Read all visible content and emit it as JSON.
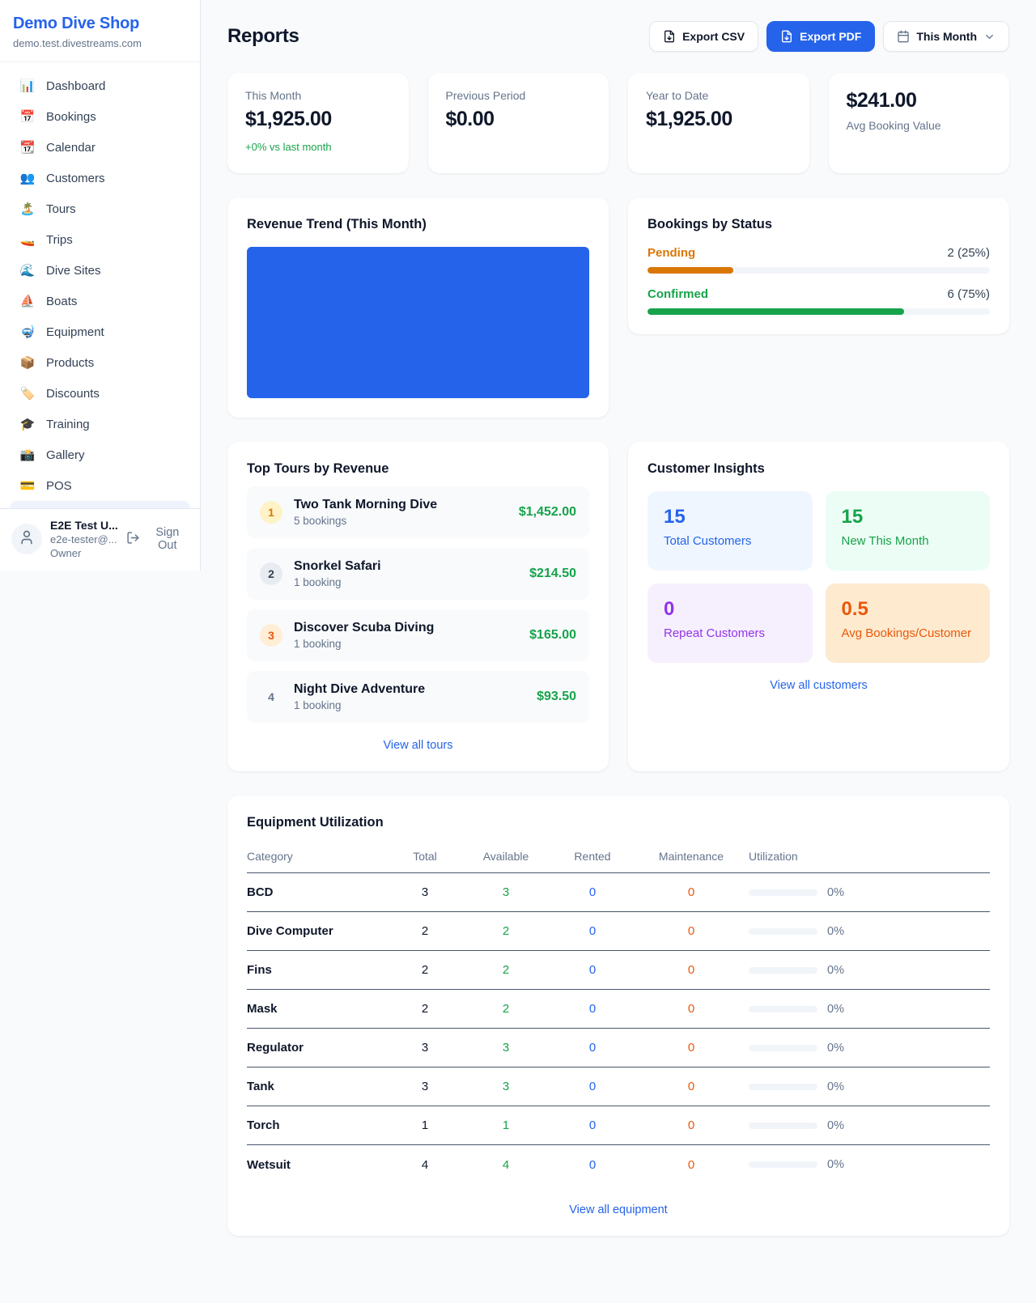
{
  "colors": {
    "accent_blue": "#2563eb",
    "green": "#16a34a",
    "pending_orange": "#d97706",
    "orange": "#ea580c",
    "purple": "#9333ea"
  },
  "sidebar": {
    "shop_name": "Demo Dive Shop",
    "domain": "demo.test.divestreams.com",
    "items": [
      {
        "icon": "📊",
        "label": "Dashboard"
      },
      {
        "icon": "📅",
        "label": "Bookings"
      },
      {
        "icon": "📆",
        "label": "Calendar"
      },
      {
        "icon": "👥",
        "label": "Customers"
      },
      {
        "icon": "🏝️",
        "label": "Tours"
      },
      {
        "icon": "🚤",
        "label": "Trips"
      },
      {
        "icon": "🌊",
        "label": "Dive Sites"
      },
      {
        "icon": "⛵",
        "label": "Boats"
      },
      {
        "icon": "🤿",
        "label": "Equipment"
      },
      {
        "icon": "📦",
        "label": "Products"
      },
      {
        "icon": "🏷️",
        "label": "Discounts"
      },
      {
        "icon": "🎓",
        "label": "Training"
      },
      {
        "icon": "📸",
        "label": "Gallery"
      },
      {
        "icon": "💳",
        "label": "POS"
      }
    ],
    "user": {
      "name": "E2E Test U...",
      "email": "e2e-tester@...",
      "role": "Owner",
      "sign_out_label": "Sign Out",
      "avatar_icon": "user-icon",
      "sign_out_icon": "logout-icon"
    }
  },
  "header": {
    "title": "Reports",
    "export_csv_label": "Export CSV",
    "export_pdf_label": "Export PDF",
    "period_label": "This Month",
    "export_icon": "file-down-icon",
    "period_icon": "calendar-icon",
    "chevron_icon": "chevron-down-icon"
  },
  "stats": [
    {
      "label": "This Month",
      "value": "$1,925.00",
      "delta": "+0% vs last month"
    },
    {
      "label": "Previous Period",
      "value": "$0.00"
    },
    {
      "label": "Year to Date",
      "value": "$1,925.00"
    },
    {
      "label": "Avg Booking Value",
      "value": "$241.00"
    }
  ],
  "revenue_trend": {
    "title": "Revenue Trend (This Month)",
    "bar_color": "#2563eb"
  },
  "bookings_by_status": {
    "title": "Bookings by Status",
    "rows": [
      {
        "label": "Pending",
        "value": "2 (25%)",
        "pct": 25,
        "color": "#d97706"
      },
      {
        "label": "Confirmed",
        "value": "6 (75%)",
        "pct": 75,
        "color": "#16a34a"
      }
    ]
  },
  "top_tours": {
    "title": "Top Tours by Revenue",
    "rows": [
      {
        "rank": "1",
        "name": "Two Tank Morning Dive",
        "bookings": "5 bookings",
        "amount": "$1,452.00"
      },
      {
        "rank": "2",
        "name": "Snorkel Safari",
        "bookings": "1 booking",
        "amount": "$214.50"
      },
      {
        "rank": "3",
        "name": "Discover Scuba Diving",
        "bookings": "1 booking",
        "amount": "$165.00"
      },
      {
        "rank": "4",
        "name": "Night Dive Adventure",
        "bookings": "1 booking",
        "amount": "$93.50"
      }
    ],
    "link": "View all tours"
  },
  "customer_insights": {
    "title": "Customer Insights",
    "tiles": [
      {
        "value": "15",
        "label": "Total Customers",
        "color": "#2563eb",
        "bg": "#eff6ff"
      },
      {
        "value": "15",
        "label": "New This Month",
        "color": "#16a34a",
        "bg": "#ecfdf5"
      },
      {
        "value": "0",
        "label": "Repeat Customers",
        "color": "#9333ea",
        "bg": "#f6f0fe"
      },
      {
        "value": "0.5",
        "label": "Avg Bookings/Customer",
        "color": "#ea580c",
        "bg": "#fdeacf"
      }
    ],
    "link": "View all customers"
  },
  "equipment": {
    "title": "Equipment Utilization",
    "columns": [
      "Category",
      "Total",
      "Available",
      "Rented",
      "Maintenance",
      "Utilization"
    ],
    "rows": [
      {
        "category": "BCD",
        "total": "3",
        "available": "3",
        "rented": "0",
        "maintenance": "0",
        "utilization": "0%"
      },
      {
        "category": "Dive Computer",
        "total": "2",
        "available": "2",
        "rented": "0",
        "maintenance": "0",
        "utilization": "0%"
      },
      {
        "category": "Fins",
        "total": "2",
        "available": "2",
        "rented": "0",
        "maintenance": "0",
        "utilization": "0%"
      },
      {
        "category": "Mask",
        "total": "2",
        "available": "2",
        "rented": "0",
        "maintenance": "0",
        "utilization": "0%"
      },
      {
        "category": "Regulator",
        "total": "3",
        "available": "3",
        "rented": "0",
        "maintenance": "0",
        "utilization": "0%"
      },
      {
        "category": "Tank",
        "total": "3",
        "available": "3",
        "rented": "0",
        "maintenance": "0",
        "utilization": "0%"
      },
      {
        "category": "Torch",
        "total": "1",
        "available": "1",
        "rented": "0",
        "maintenance": "0",
        "utilization": "0%"
      },
      {
        "category": "Wetsuit",
        "total": "4",
        "available": "4",
        "rented": "0",
        "maintenance": "0",
        "utilization": "0%"
      }
    ],
    "link": "View all equipment"
  }
}
